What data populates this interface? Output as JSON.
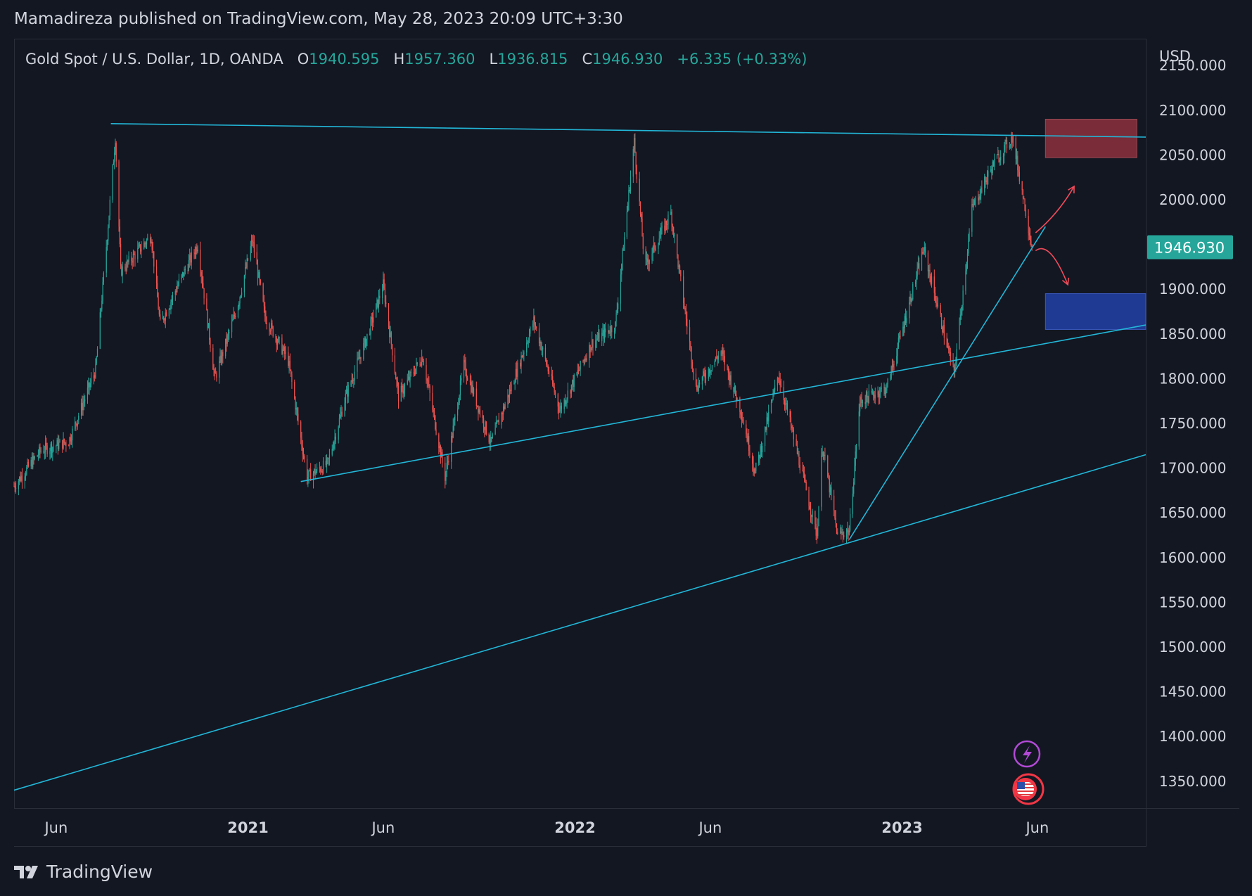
{
  "header": {
    "publisher_line": "Mamadireza published on TradingView.com, May 28, 2023 20:09 UTC+3:30"
  },
  "legend": {
    "symbol": "Gold Spot / U.S. Dollar, 1D, OANDA",
    "open_label": "O",
    "open": "1940.595",
    "high_label": "H",
    "high": "1957.360",
    "low_label": "L",
    "low": "1936.815",
    "close_label": "C",
    "close": "1946.930",
    "change": "+6.335 (+0.33%)"
  },
  "price_axis": {
    "currency": "USD",
    "ticks": [
      "2150.000",
      "2100.000",
      "2050.000",
      "2000.000",
      "1950.000",
      "1900.000",
      "1850.000",
      "1800.000",
      "1750.000",
      "1700.000",
      "1650.000",
      "1600.000",
      "1550.000",
      "1500.000",
      "1450.000",
      "1400.000",
      "1350.000"
    ],
    "last_price": "1946.930"
  },
  "time_axis": {
    "labels": [
      "Jun",
      "2021",
      "Jun",
      "2022",
      "Jun",
      "2023",
      "Jun"
    ],
    "bold": [
      "2021",
      "2022",
      "2023"
    ]
  },
  "branding": {
    "name": "TradingView"
  },
  "colors": {
    "background": "#131722",
    "up": "#26a69a",
    "down": "#ef5350",
    "trendline": "#22b7d8",
    "resistance_zone": "#7a2c38",
    "support_zone": "#1f3a93",
    "arrow": "#ef4b5a",
    "last_price_bg": "#26a69a"
  },
  "chart_data": {
    "type": "candlestick",
    "symbol": "XAUUSD",
    "interval": "1D",
    "y_range": [
      1320,
      2180
    ],
    "x_range": [
      "2020-04-15",
      "2023-09-30"
    ],
    "path": [
      [
        "2020-04-15",
        1680
      ],
      [
        "2020-05-15",
        1720
      ],
      [
        "2020-06-15",
        1730
      ],
      [
        "2020-07-15",
        1810
      ],
      [
        "2020-07-28",
        1960
      ],
      [
        "2020-08-06",
        2070
      ],
      [
        "2020-08-12",
        1920
      ],
      [
        "2020-08-25",
        1935
      ],
      [
        "2020-09-15",
        1960
      ],
      [
        "2020-09-25",
        1860
      ],
      [
        "2020-10-15",
        1905
      ],
      [
        "2020-11-06",
        1950
      ],
      [
        "2020-11-25",
        1800
      ],
      [
        "2020-12-20",
        1880
      ],
      [
        "2021-01-06",
        1955
      ],
      [
        "2021-01-20",
        1870
      ],
      [
        "2021-02-15",
        1820
      ],
      [
        "2021-03-08",
        1690
      ],
      [
        "2021-03-31",
        1705
      ],
      [
        "2021-04-20",
        1780
      ],
      [
        "2021-05-15",
        1850
      ],
      [
        "2021-06-01",
        1905
      ],
      [
        "2021-06-18",
        1780
      ],
      [
        "2021-07-15",
        1825
      ],
      [
        "2021-08-09",
        1690
      ],
      [
        "2021-08-30",
        1815
      ],
      [
        "2021-09-29",
        1728
      ],
      [
        "2021-10-20",
        1785
      ],
      [
        "2021-11-16",
        1865
      ],
      [
        "2021-12-15",
        1765
      ],
      [
        "2022-01-20",
        1840
      ],
      [
        "2022-02-15",
        1860
      ],
      [
        "2022-03-08",
        2065
      ],
      [
        "2022-03-20",
        1925
      ],
      [
        "2022-04-18",
        1985
      ],
      [
        "2022-05-16",
        1790
      ],
      [
        "2022-06-13",
        1830
      ],
      [
        "2022-07-05",
        1765
      ],
      [
        "2022-07-21",
        1695
      ],
      [
        "2022-08-16",
        1805
      ],
      [
        "2022-09-28",
        1625
      ],
      [
        "2022-10-04",
        1725
      ],
      [
        "2022-10-21",
        1625
      ],
      [
        "2022-11-03",
        1630
      ],
      [
        "2022-11-15",
        1775
      ],
      [
        "2022-12-15",
        1790
      ],
      [
        "2023-01-25",
        1945
      ],
      [
        "2023-02-28",
        1805
      ],
      [
        "2023-03-20",
        1990
      ],
      [
        "2023-04-13",
        2040
      ],
      [
        "2023-05-04",
        2070
      ],
      [
        "2023-05-15",
        2010
      ],
      [
        "2023-05-26",
        1946.93
      ]
    ],
    "last_candle": {
      "open": 1940.595,
      "high": 1957.36,
      "low": 1936.815,
      "close": 1946.93,
      "change": 6.335,
      "change_pct": 0.33
    },
    "trendlines": [
      {
        "from": [
          "2020-08-01",
          2085
        ],
        "to": [
          "2023-09-30",
          2070
        ]
      },
      {
        "from": [
          "2021-03-01",
          1685
        ],
        "to": [
          "2023-09-30",
          1860
        ]
      },
      {
        "from": [
          "2020-04-15",
          1340
        ],
        "to": [
          "2023-09-30",
          1715
        ]
      },
      {
        "from": [
          "2022-11-03",
          1620
        ],
        "to": [
          "2023-06-10",
          1970
        ]
      }
    ],
    "zones": [
      {
        "from": "2023-06-10",
        "to": "2023-09-20",
        "low": 2047,
        "high": 2090,
        "kind": "resistance"
      },
      {
        "from": "2023-06-10",
        "to": "2023-09-30",
        "low": 1855,
        "high": 1895,
        "kind": "support"
      }
    ],
    "arrows": [
      {
        "path": [
          [
            "2023-05-30",
            1963
          ],
          [
            "2023-06-25",
            1985
          ],
          [
            "2023-07-12",
            2015
          ]
        ]
      },
      {
        "path": [
          [
            "2023-05-30",
            1943
          ],
          [
            "2023-06-15",
            1955
          ],
          [
            "2023-07-05",
            1905
          ]
        ]
      }
    ],
    "time_ticks": [
      {
        "date": "2020-06-01",
        "label": "Jun"
      },
      {
        "date": "2021-01-01",
        "label": "2021"
      },
      {
        "date": "2021-06-01",
        "label": "Jun"
      },
      {
        "date": "2022-01-01",
        "label": "2022"
      },
      {
        "date": "2022-06-01",
        "label": "Jun"
      },
      {
        "date": "2023-01-01",
        "label": "2023"
      },
      {
        "date": "2023-06-01",
        "label": "Jun"
      }
    ],
    "grid": false
  }
}
